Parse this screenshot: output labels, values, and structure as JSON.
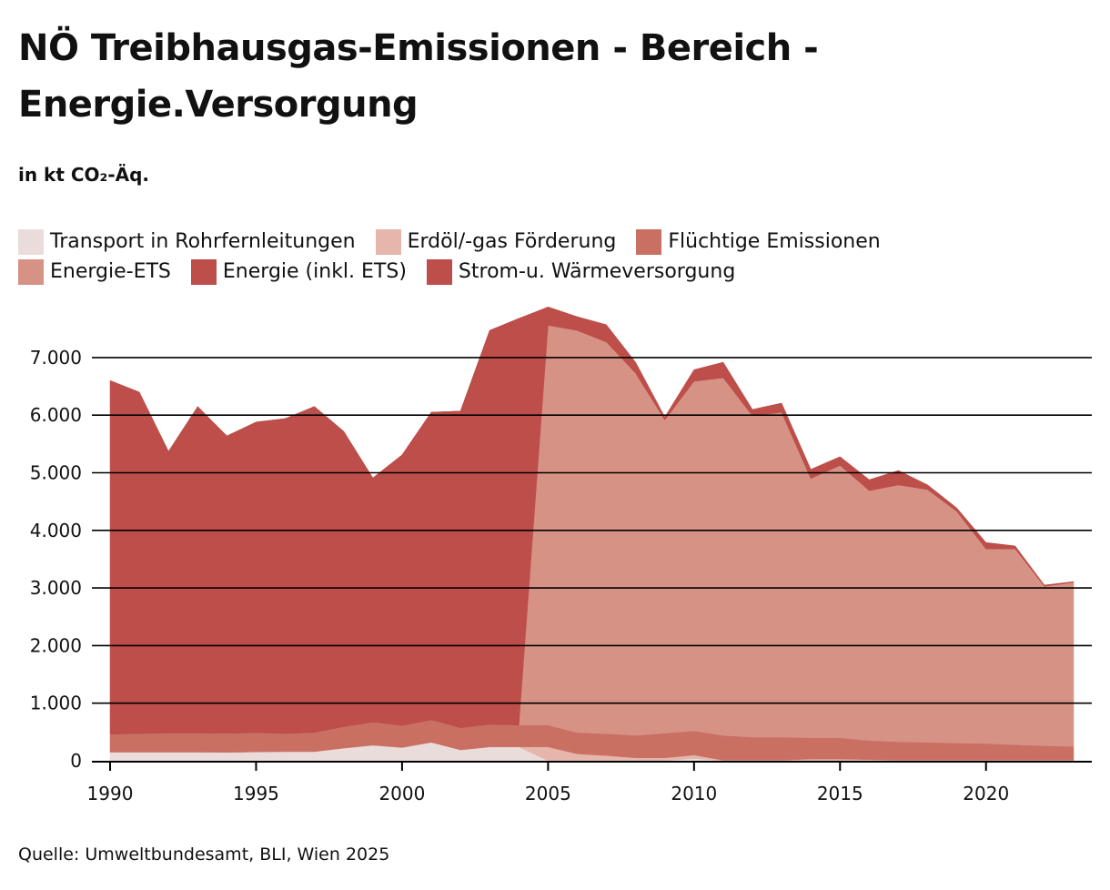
{
  "header": {
    "title": "NÖ Treibhausgas-Emissionen - Bereich - Energie.Versorgung",
    "subtitle": "in kt CO₂-Äq."
  },
  "footer": {
    "source": "Quelle: Umweltbundesamt, BLI, Wien 2025"
  },
  "chart_data": {
    "type": "area",
    "stacked": true,
    "title": "NÖ Treibhausgas-Emissionen - Bereich - Energie.Versorgung",
    "ylabel": "in kt CO₂-Äq.",
    "xlabel": "",
    "x": [
      1990,
      1991,
      1992,
      1993,
      1994,
      1995,
      1996,
      1997,
      1998,
      1999,
      2000,
      2001,
      2002,
      2003,
      2004,
      2005,
      2006,
      2007,
      2008,
      2009,
      2010,
      2011,
      2012,
      2013,
      2014,
      2015,
      2016,
      2017,
      2018,
      2019,
      2020,
      2021,
      2022,
      2023
    ],
    "xticks": [
      1990,
      1995,
      2000,
      2005,
      2010,
      2015,
      2020
    ],
    "xtick_labels": [
      "1990",
      "1995",
      "2000",
      "2005",
      "2010",
      "2015",
      "2020"
    ],
    "ylim": [
      0,
      7900
    ],
    "yticks": [
      0,
      1000,
      2000,
      3000,
      4000,
      5000,
      6000,
      7000
    ],
    "ytick_labels": [
      "0",
      "1.000",
      "2.000",
      "3.000",
      "4.000",
      "5.000",
      "6.000",
      "7.000"
    ],
    "grid": true,
    "legend_position": "top-left",
    "series": [
      {
        "name": "Transport in Rohrfernleitungen",
        "color": "#e9dcda",
        "values": [
          150,
          150,
          150,
          150,
          145,
          155,
          160,
          160,
          220,
          270,
          230,
          320,
          190,
          240,
          240,
          0,
          0,
          0,
          0,
          0,
          40,
          0,
          0,
          0,
          0,
          0,
          0,
          0,
          0,
          0,
          0,
          0,
          0,
          0
        ]
      },
      {
        "name": "Erdöl/-gas Förderung",
        "color": "#e6b6ac",
        "values": [
          0,
          0,
          0,
          0,
          0,
          0,
          0,
          0,
          0,
          0,
          0,
          0,
          0,
          0,
          0,
          240,
          120,
          90,
          50,
          50,
          60,
          10,
          10,
          10,
          30,
          30,
          20,
          10,
          10,
          10,
          10,
          10,
          10,
          10
        ]
      },
      {
        "name": "Flüchtige Emissionen",
        "color": "#c97063",
        "values": [
          310,
          320,
          330,
          330,
          330,
          330,
          310,
          330,
          370,
          400,
          380,
          390,
          380,
          390,
          380,
          380,
          370,
          380,
          390,
          430,
          420,
          430,
          400,
          400,
          370,
          370,
          330,
          320,
          310,
          300,
          290,
          270,
          250,
          240
        ]
      },
      {
        "name": "Energie-ETS",
        "color": "#d79286",
        "values": [
          0,
          0,
          0,
          0,
          0,
          0,
          0,
          0,
          0,
          0,
          0,
          0,
          0,
          0,
          0,
          6940,
          6980,
          6800,
          6290,
          5440,
          6070,
          6210,
          5580,
          5640,
          4500,
          4730,
          4340,
          4460,
          4390,
          4020,
          3380,
          3400,
          2770,
          2850
        ]
      },
      {
        "name": "Energie (inkl. ETS)",
        "color": "#bd4e49",
        "values": [
          6140,
          5930,
          4890,
          5670,
          5165,
          5395,
          5470,
          5660,
          5130,
          4240,
          4700,
          5340,
          5500,
          6840,
          7060,
          300,
          0,
          0,
          0,
          0,
          0,
          0,
          0,
          0,
          0,
          0,
          0,
          0,
          0,
          0,
          0,
          0,
          0,
          0
        ]
      },
      {
        "name": "Strom-u. Wärmeversorgung",
        "color": "#bd4e49",
        "values": [
          0,
          0,
          0,
          0,
          0,
          0,
          0,
          0,
          0,
          0,
          0,
          0,
          0,
          0,
          0,
          20,
          240,
          300,
          190,
          50,
          200,
          270,
          110,
          160,
          160,
          150,
          190,
          250,
          80,
          60,
          110,
          50,
          20,
          10
        ]
      }
    ]
  }
}
